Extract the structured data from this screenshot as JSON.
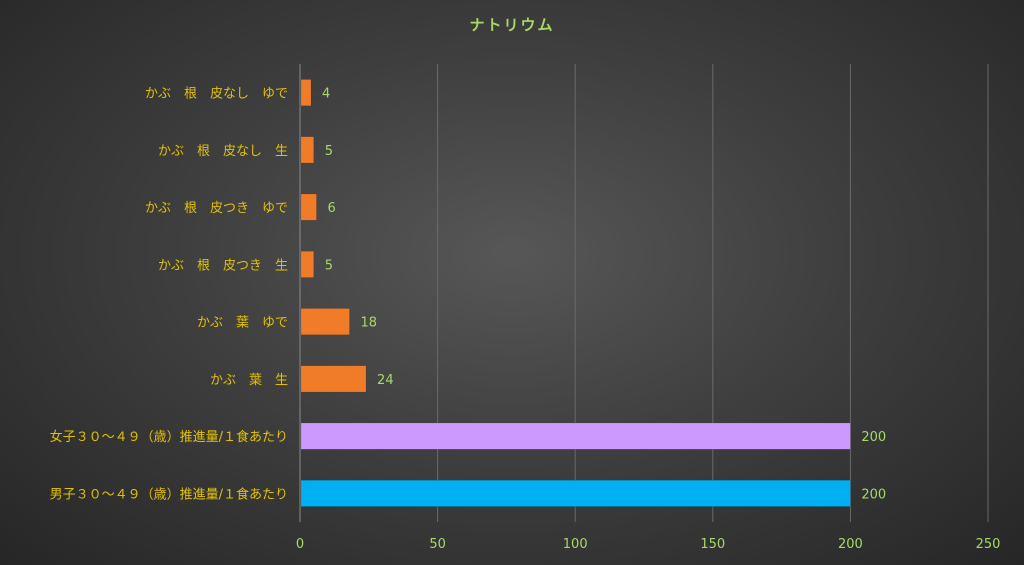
{
  "chart_data": {
    "type": "bar",
    "orientation": "horizontal",
    "title": "ナトリウム",
    "xlabel": "",
    "ylabel": "",
    "categories": [
      "かぶ　根　皮なし　ゆで",
      "かぶ　根　皮なし　生",
      "かぶ　根　皮つき　ゆで",
      "かぶ　根　皮つき　生",
      "かぶ　葉　ゆで",
      "かぶ　葉　生",
      "女子３０～４９（歳）推進量/１食あたり",
      "男子３０～４９（歳）推進量/１食あたり"
    ],
    "values": [
      4,
      5,
      6,
      5,
      18,
      24,
      200,
      200
    ],
    "bar_colors": [
      "#f07c2a",
      "#f07c2a",
      "#f07c2a",
      "#f07c2a",
      "#f07c2a",
      "#f07c2a",
      "#cc99ff",
      "#00b0f0"
    ],
    "xlim": [
      0,
      250
    ],
    "xticks": [
      0,
      50,
      100,
      150,
      200,
      250
    ],
    "grid": true,
    "legend": "none",
    "colors": {
      "title": "#a6d96a",
      "category_labels": "#e2c200",
      "tick_labels": "#a6d96a",
      "data_labels": "#a6d96a",
      "gridlines": "#6a6a6a"
    }
  }
}
